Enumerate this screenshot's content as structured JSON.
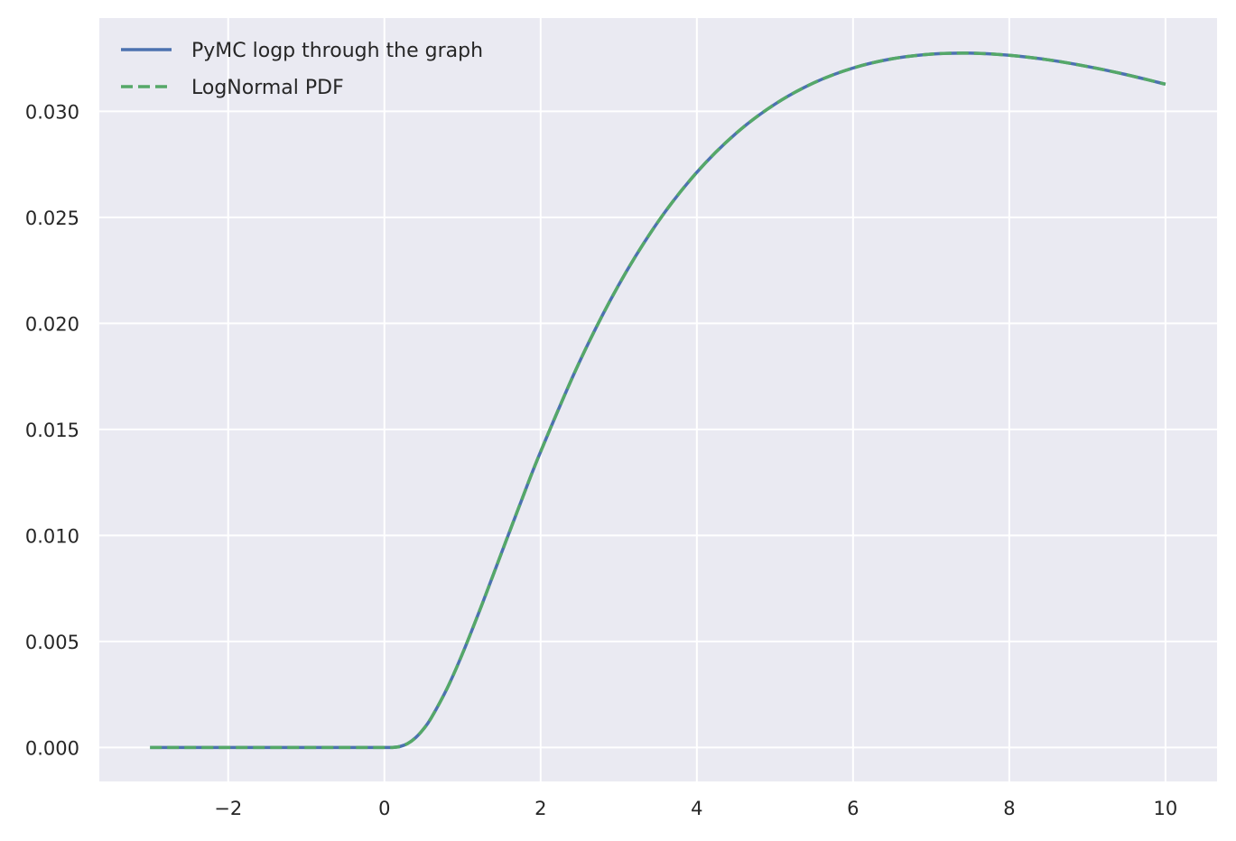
{
  "chart_data": {
    "type": "line",
    "title": "",
    "xlabel": "",
    "ylabel": "",
    "xlim": [
      -3.65,
      10.66
    ],
    "ylim": [
      -0.0016,
      0.0344
    ],
    "grid": true,
    "legend_placement": "top-left",
    "background_color": "#eaeaf2",
    "xticks": [
      -2,
      0,
      2,
      4,
      6,
      8,
      10
    ],
    "xtick_labels": [
      "−2",
      "0",
      "2",
      "4",
      "6",
      "8",
      "10"
    ],
    "yticks": [
      0.0,
      0.005,
      0.01,
      0.015,
      0.02,
      0.025,
      0.03
    ],
    "ytick_labels": [
      "0.000",
      "0.005",
      "0.010",
      "0.015",
      "0.020",
      "0.025",
      "0.030"
    ],
    "x": [
      -3,
      -2,
      -1,
      0,
      0.1,
      0.2,
      0.3,
      0.4,
      0.5,
      0.6,
      0.8,
      1,
      1.25,
      1.5,
      1.75,
      2,
      2.5,
      3,
      3.5,
      4,
      4.5,
      5,
      5.5,
      6,
      6.5,
      7,
      7.5,
      8,
      8.5,
      9,
      9.5,
      10
    ],
    "series": [
      {
        "name": "PyMC logp through the graph",
        "color": "#4c72b0",
        "style": "solid",
        "values": [
          0,
          0,
          0,
          0,
          3e-06,
          4.9e-05,
          0.000193,
          0.000466,
          0.000871,
          0.001401,
          0.002768,
          0.004432,
          0.006753,
          0.009187,
          0.011604,
          0.01395,
          0.018205,
          0.021816,
          0.024775,
          0.027126,
          0.028958,
          0.03034,
          0.031349,
          0.032044,
          0.032479,
          0.032698,
          0.032744,
          0.032643,
          0.032429,
          0.032116,
          0.03173,
          0.03128
        ]
      },
      {
        "name": "LogNormal PDF",
        "color": "#55a868",
        "style": "dashed",
        "values": [
          0,
          0,
          0,
          0,
          3e-06,
          4.9e-05,
          0.000193,
          0.000466,
          0.000871,
          0.001401,
          0.002768,
          0.004432,
          0.006753,
          0.009187,
          0.011604,
          0.01395,
          0.018205,
          0.021816,
          0.024775,
          0.027126,
          0.028958,
          0.03034,
          0.031349,
          0.032044,
          0.032479,
          0.032698,
          0.032744,
          0.032643,
          0.032429,
          0.032116,
          0.03173,
          0.03128
        ]
      }
    ]
  }
}
